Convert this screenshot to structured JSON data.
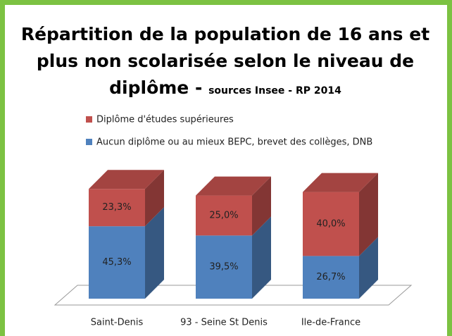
{
  "chart_data": {
    "type": "stacked-bar-3d",
    "title": "Répartition de la population de 16 ans et plus non scolarisée selon le niveau de diplôme -",
    "subtitle": "sources Insee - RP 2014",
    "categories": [
      "Saint-Denis",
      "93 - Seine St Denis",
      "Ile-de-France"
    ],
    "series": [
      {
        "name": "Aucun diplôme ou au mieux BEPC, brevet des collèges, DNB",
        "color": "#4f81bd",
        "values": [
          45.3,
          39.5,
          26.7
        ],
        "value_labels": [
          "45,3%",
          "39,5%",
          "26,7%"
        ]
      },
      {
        "name": "Diplôme d'études supérieures",
        "color": "#c0504d",
        "values": [
          23.3,
          25.0,
          40.0
        ],
        "value_labels": [
          "23,3%",
          "25,0%",
          "40,0%"
        ]
      }
    ],
    "legend": "top"
  }
}
